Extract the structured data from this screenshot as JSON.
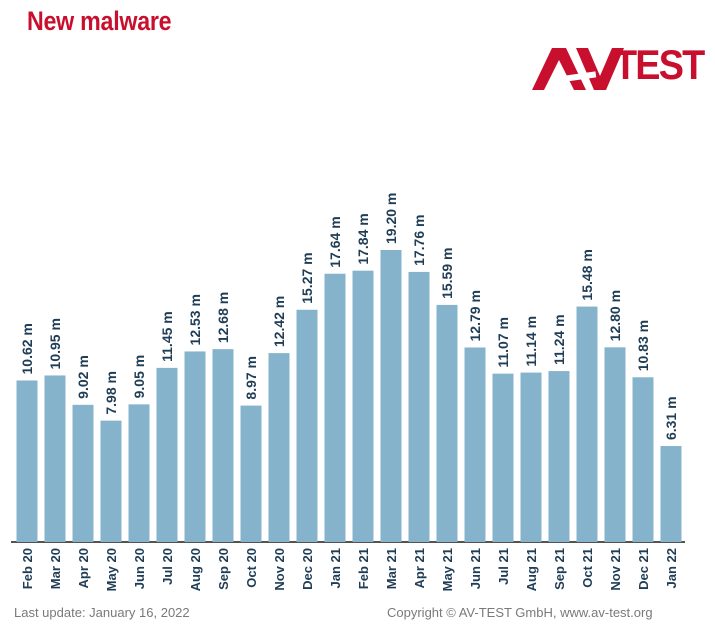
{
  "title": "New malware",
  "logo": {
    "text": "TEST",
    "mark": "AV"
  },
  "footer": {
    "last_update": "Last update: January 16, 2022",
    "copyright": "Copyright © AV-TEST GmbH, www.av-test.org"
  },
  "colors": {
    "bar": "#85b3cc",
    "label": "#1f3d55",
    "title": "#c8102e",
    "axis": "#1a1a1a"
  },
  "chart_data": {
    "type": "bar",
    "categories": [
      "Feb 20",
      "Mar 20",
      "Apr 20",
      "May 20",
      "Jun 20",
      "Jul 20",
      "Aug 20",
      "Sep 20",
      "Oct 20",
      "Nov 20",
      "Dec 20",
      "Jan 21",
      "Feb 21",
      "Mar 21",
      "Apr 21",
      "May 21",
      "Jun 21",
      "Jul 21",
      "Aug 21",
      "Sep 21",
      "Oct 21",
      "Nov 21",
      "Dec 21",
      "Jan 22"
    ],
    "values": [
      10.62,
      10.95,
      9.02,
      7.98,
      9.05,
      11.45,
      12.53,
      12.68,
      8.97,
      12.42,
      15.27,
      17.64,
      17.84,
      19.2,
      17.76,
      15.59,
      12.79,
      11.07,
      11.14,
      11.24,
      15.48,
      12.8,
      10.83,
      6.31
    ],
    "data_labels": [
      "10.62 m",
      "10.95 m",
      "9.02 m",
      "7.98 m",
      "9.05 m",
      "11.45 m",
      "12.53 m",
      "12.68 m",
      "8.97 m",
      "12.42 m",
      "15.27 m",
      "17.64 m",
      "17.84 m",
      "19.20 m",
      "17.76 m",
      "15.59 m",
      "12.79 m",
      "11.07 m",
      "11.14 m",
      "11.24 m",
      "15.48 m",
      "12.80 m",
      "10.83 m",
      "6.31 m"
    ],
    "unit": "m",
    "ylim": [
      0,
      19.2
    ],
    "grid": false,
    "title": "New malware"
  }
}
